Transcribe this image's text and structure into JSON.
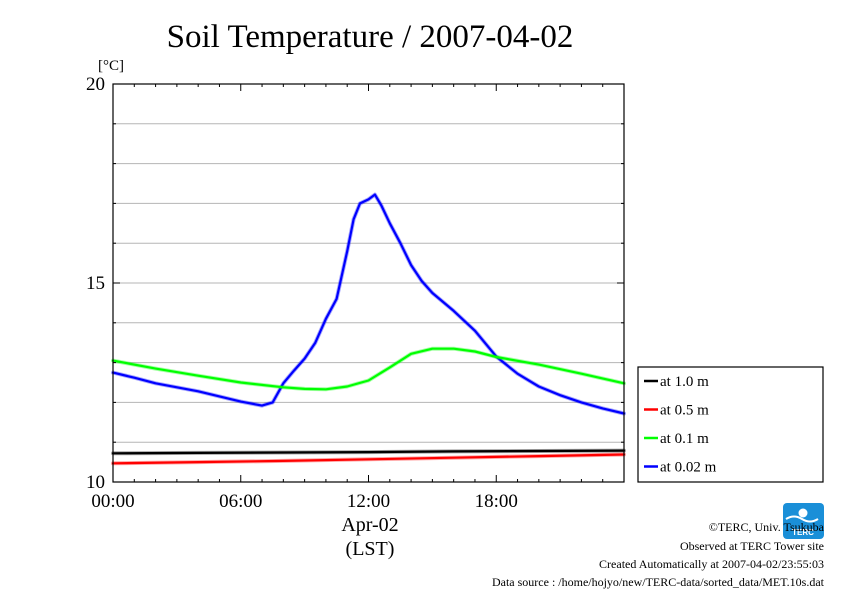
{
  "chart_data": {
    "type": "line",
    "title": "Soil Temperature / 2007-04-02",
    "ylabel": "[°C]",
    "xlabel": "Apr-02",
    "xlabel2": "(LST)",
    "xlim": [
      0,
      24
    ],
    "ylim": [
      10,
      20
    ],
    "x_ticks": [
      0,
      6,
      12,
      18
    ],
    "x_tick_labels": [
      "00:00",
      "06:00",
      "12:00",
      "18:00"
    ],
    "y_ticks": [
      10,
      15,
      20
    ],
    "y_tick_labels": [
      "10",
      "15",
      "20"
    ],
    "grid": true,
    "legend_position": "right",
    "series": [
      {
        "name": "at 1.0 m",
        "color": "#000000",
        "x": [
          0,
          4,
          8,
          12,
          16,
          20,
          24
        ],
        "y": [
          10.72,
          10.73,
          10.74,
          10.75,
          10.77,
          10.78,
          10.79
        ]
      },
      {
        "name": "at 0.5 m",
        "color": "#ff0000",
        "x": [
          0,
          4,
          8,
          12,
          16,
          20,
          24
        ],
        "y": [
          10.47,
          10.5,
          10.53,
          10.57,
          10.61,
          10.65,
          10.69
        ]
      },
      {
        "name": "at 0.1 m",
        "color": "#00ff00",
        "x": [
          0,
          2,
          4,
          6,
          8,
          9,
          10,
          11,
          12,
          13,
          14,
          15,
          16,
          17,
          18,
          20,
          22,
          24
        ],
        "y": [
          13.05,
          12.85,
          12.67,
          12.5,
          12.38,
          12.34,
          12.33,
          12.4,
          12.55,
          12.88,
          13.22,
          13.35,
          13.35,
          13.28,
          13.14,
          12.95,
          12.72,
          12.48
        ]
      },
      {
        "name": "at 0.02 m",
        "color": "#0000ff",
        "x": [
          0,
          1,
          2,
          3,
          4,
          5,
          6,
          7,
          7.5,
          8,
          8.5,
          9,
          9.5,
          10,
          10.5,
          11,
          11.3,
          11.6,
          12,
          12.3,
          12.6,
          13,
          13.5,
          14,
          14.5,
          15,
          16,
          17,
          18,
          19,
          20,
          21,
          22,
          23,
          24
        ],
        "y": [
          12.75,
          12.62,
          12.48,
          12.38,
          12.28,
          12.15,
          12.02,
          11.92,
          12.0,
          12.48,
          12.8,
          13.1,
          13.5,
          14.1,
          14.6,
          15.8,
          16.6,
          17.0,
          17.1,
          17.22,
          16.95,
          16.5,
          16.0,
          15.45,
          15.05,
          14.75,
          14.3,
          13.8,
          13.15,
          12.72,
          12.4,
          12.18,
          12.0,
          11.85,
          11.72
        ]
      }
    ]
  },
  "credits": {
    "copyright": "©TERC, Univ. Tsukuba",
    "observed": "Observed at TERC Tower site",
    "created": "Created Automatically at 2007-04-02/23:55:03",
    "source": "Data source : /home/hojyo/new/TERC-data/sorted_data/MET.10s.dat",
    "logo_text": "TERC"
  }
}
